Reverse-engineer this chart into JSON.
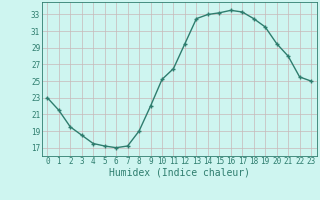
{
  "x": [
    0,
    1,
    2,
    3,
    4,
    5,
    6,
    7,
    8,
    9,
    10,
    11,
    12,
    13,
    14,
    15,
    16,
    17,
    18,
    19,
    20,
    21,
    22,
    23
  ],
  "y": [
    23.0,
    21.5,
    19.5,
    18.5,
    17.5,
    17.2,
    17.0,
    17.2,
    19.0,
    22.0,
    25.2,
    26.5,
    29.5,
    32.5,
    33.0,
    33.2,
    33.5,
    33.3,
    32.5,
    31.5,
    29.5,
    28.0,
    25.5,
    25.0
  ],
  "xlabel": "Humidex (Indice chaleur)",
  "xlim": [
    -0.5,
    23.5
  ],
  "ylim": [
    16.0,
    34.5
  ],
  "yticks": [
    17,
    19,
    21,
    23,
    25,
    27,
    29,
    31,
    33
  ],
  "xticks": [
    0,
    1,
    2,
    3,
    4,
    5,
    6,
    7,
    8,
    9,
    10,
    11,
    12,
    13,
    14,
    15,
    16,
    17,
    18,
    19,
    20,
    21,
    22,
    23
  ],
  "line_color": "#2e7d6e",
  "marker": "+",
  "bg_color": "#cef5f0",
  "grid_color": "#c8b8b8",
  "tick_color": "#2e7d6e",
  "xlabel_color": "#2e7d6e",
  "spine_color": "#2e7d6e",
  "linewidth": 1.0,
  "markersize": 3.5,
  "tick_fontsize": 5.5,
  "xlabel_fontsize": 7.0
}
